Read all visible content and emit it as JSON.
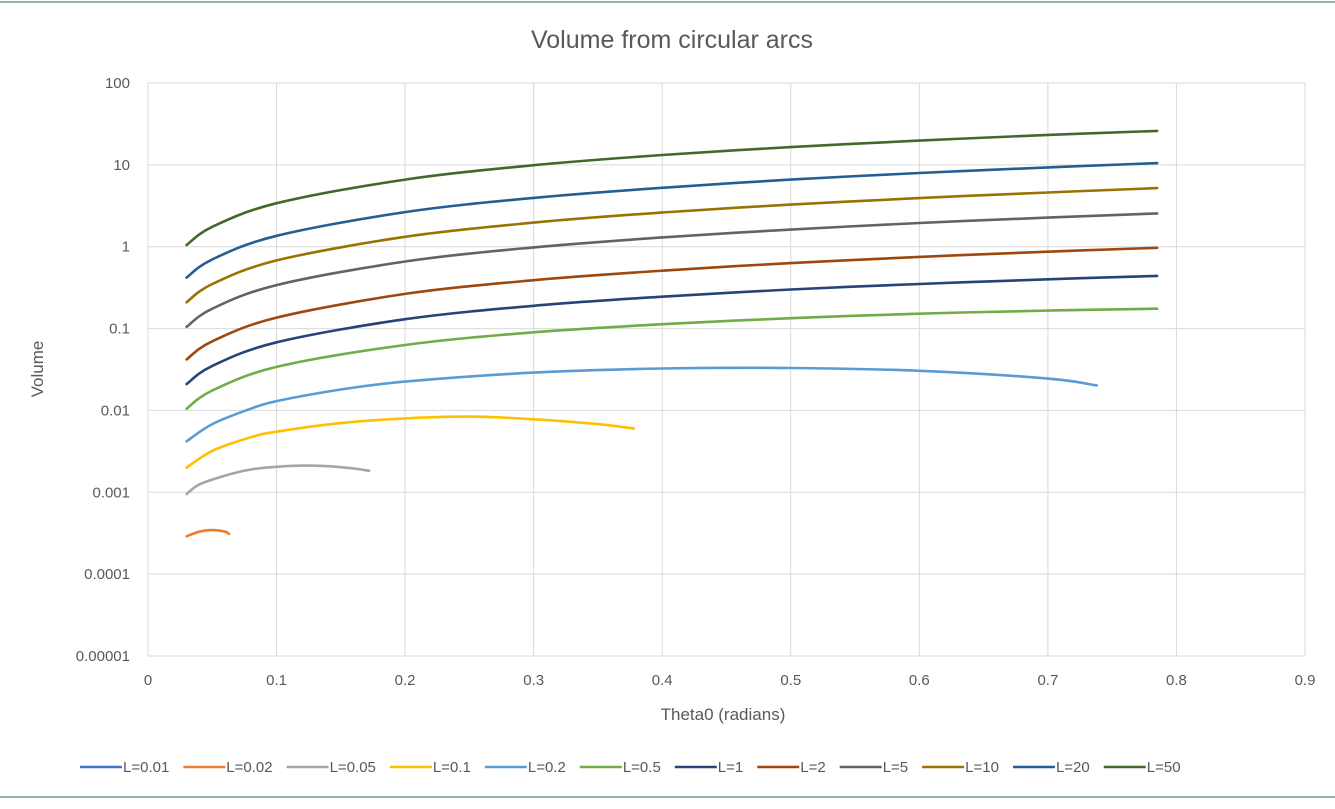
{
  "chart_data": {
    "type": "line",
    "title": "Volume from circular arcs",
    "xlabel": "Theta0 (radians)",
    "ylabel": "Volume",
    "xlim": [
      0,
      0.9
    ],
    "ylim": [
      1e-05,
      100
    ],
    "yscale": "log",
    "grid": true,
    "legend": "bottom",
    "x_ticks": [
      "0",
      "0.1",
      "0.2",
      "0.3",
      "0.4",
      "0.5",
      "0.6",
      "0.7",
      "0.8",
      "0.9"
    ],
    "y_ticks": [
      "0.00001",
      "0.0001",
      "0.001",
      "0.01",
      "0.1",
      "1",
      "10",
      "100"
    ],
    "series": [
      {
        "name": "L=0.01",
        "color": "#4472C4",
        "x": [],
        "y": []
      },
      {
        "name": "L=0.02",
        "color": "#ED7D31",
        "x": [
          0.03,
          0.04,
          0.05,
          0.06,
          0.063
        ],
        "y": [
          0.00029,
          0.00033,
          0.000345,
          0.00033,
          0.00031
        ]
      },
      {
        "name": "L=0.05",
        "color": "#A5A5A5",
        "x": [
          0.03,
          0.04,
          0.06,
          0.08,
          0.1,
          0.12,
          0.14,
          0.16,
          0.172
        ],
        "y": [
          0.00095,
          0.00125,
          0.0016,
          0.0019,
          0.00205,
          0.00212,
          0.00208,
          0.00195,
          0.00183
        ]
      },
      {
        "name": "L=0.1",
        "color": "#FFC000",
        "x": [
          0.03,
          0.05,
          0.08,
          0.1,
          0.15,
          0.2,
          0.25,
          0.3,
          0.35,
          0.378
        ],
        "y": [
          0.002,
          0.0032,
          0.0047,
          0.0055,
          0.007,
          0.008,
          0.0084,
          0.0078,
          0.0068,
          0.006
        ]
      },
      {
        "name": "L=0.2",
        "color": "#5B9BD5",
        "x": [
          0.03,
          0.05,
          0.08,
          0.1,
          0.15,
          0.2,
          0.3,
          0.4,
          0.5,
          0.6,
          0.7,
          0.738
        ],
        "y": [
          0.0042,
          0.0068,
          0.0105,
          0.013,
          0.018,
          0.0225,
          0.029,
          0.0325,
          0.033,
          0.0305,
          0.0245,
          0.0202
        ]
      },
      {
        "name": "L=0.5",
        "color": "#70AD47",
        "x": [
          0.03,
          0.05,
          0.1,
          0.2,
          0.3,
          0.4,
          0.5,
          0.6,
          0.7,
          0.785
        ],
        "y": [
          0.0105,
          0.0175,
          0.034,
          0.063,
          0.09,
          0.113,
          0.134,
          0.152,
          0.166,
          0.175
        ]
      },
      {
        "name": "L=1",
        "color": "#264478",
        "x": [
          0.03,
          0.05,
          0.1,
          0.2,
          0.3,
          0.4,
          0.5,
          0.6,
          0.7,
          0.785
        ],
        "y": [
          0.021,
          0.035,
          0.068,
          0.13,
          0.19,
          0.245,
          0.3,
          0.35,
          0.4,
          0.44
        ]
      },
      {
        "name": "L=2",
        "color": "#9E480E",
        "x": [
          0.03,
          0.05,
          0.1,
          0.2,
          0.3,
          0.4,
          0.5,
          0.6,
          0.7,
          0.785
        ],
        "y": [
          0.042,
          0.07,
          0.136,
          0.265,
          0.39,
          0.51,
          0.63,
          0.75,
          0.87,
          0.97
        ]
      },
      {
        "name": "L=5",
        "color": "#636363",
        "x": [
          0.03,
          0.05,
          0.1,
          0.2,
          0.3,
          0.4,
          0.5,
          0.6,
          0.7,
          0.785
        ],
        "y": [
          0.105,
          0.175,
          0.34,
          0.66,
          0.98,
          1.3,
          1.62,
          1.95,
          2.27,
          2.55
        ]
      },
      {
        "name": "L=10",
        "color": "#997300",
        "x": [
          0.03,
          0.05,
          0.1,
          0.2,
          0.3,
          0.4,
          0.5,
          0.6,
          0.7,
          0.785
        ],
        "y": [
          0.21,
          0.35,
          0.68,
          1.32,
          1.97,
          2.62,
          3.27,
          3.93,
          4.6,
          5.2
        ]
      },
      {
        "name": "L=20",
        "color": "#255E91",
        "x": [
          0.03,
          0.05,
          0.1,
          0.2,
          0.3,
          0.4,
          0.5,
          0.6,
          0.7,
          0.785
        ],
        "y": [
          0.42,
          0.7,
          1.36,
          2.65,
          3.95,
          5.25,
          6.6,
          7.95,
          9.3,
          10.5
        ]
      },
      {
        "name": "L=50",
        "color": "#43682B",
        "x": [
          0.03,
          0.05,
          0.1,
          0.2,
          0.3,
          0.4,
          0.5,
          0.6,
          0.7,
          0.785
        ],
        "y": [
          1.05,
          1.75,
          3.4,
          6.6,
          9.9,
          13.2,
          16.5,
          19.8,
          23.2,
          26
        ]
      }
    ]
  }
}
